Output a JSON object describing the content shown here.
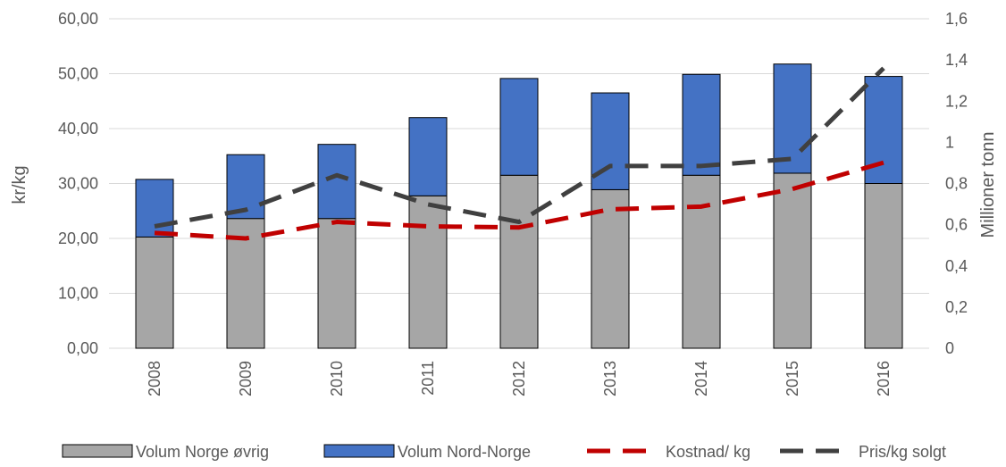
{
  "chart_data": {
    "type": "bar",
    "categories": [
      "2008",
      "2009",
      "2010",
      "2011",
      "2012",
      "2013",
      "2014",
      "2015",
      "2016"
    ],
    "ylabel": "kr/kg",
    "y2label": "Millioner tonn",
    "ylim": [
      0,
      60
    ],
    "y2lim": [
      0,
      1.6
    ],
    "y_ticks": [
      "0,00",
      "10,00",
      "20,00",
      "30,00",
      "40,00",
      "50,00",
      "60,00"
    ],
    "y2_ticks": [
      "0",
      "0,2",
      "0,4",
      "0,6",
      "0,8",
      "1",
      "1,2",
      "1,4",
      "1,6"
    ],
    "grid": true,
    "legend_position": "bottom",
    "series": [
      {
        "name": "Volum Norge øvrig",
        "kind": "stacked-bar",
        "axis": "right",
        "color": "#a6a6a6",
        "values": [
          0.54,
          0.63,
          0.63,
          0.74,
          0.84,
          0.77,
          0.84,
          0.85,
          0.8
        ]
      },
      {
        "name": "Volum Nord-Norge",
        "kind": "stacked-bar",
        "axis": "right",
        "color": "#4472c4",
        "values": [
          0.28,
          0.31,
          0.36,
          0.38,
          0.47,
          0.47,
          0.49,
          0.53,
          0.52
        ]
      },
      {
        "name": "Kostnad/ kg",
        "kind": "line",
        "style": "dashed",
        "axis": "left",
        "color": "#c00000",
        "values": [
          21.0,
          20.0,
          23.0,
          22.2,
          22.0,
          25.3,
          25.8,
          29.0,
          33.8
        ]
      },
      {
        "name": "Pris/kg solgt",
        "kind": "line",
        "style": "dashed",
        "axis": "left",
        "color": "#404040",
        "values": [
          22.2,
          25.2,
          31.5,
          26.2,
          23.0,
          33.2,
          33.2,
          34.5,
          51.0
        ]
      }
    ]
  }
}
